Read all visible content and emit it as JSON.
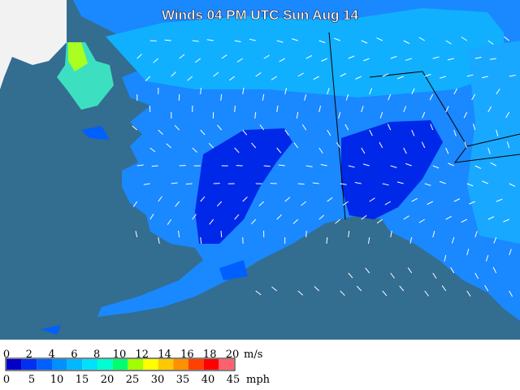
{
  "title": "Winds 04 PM UTC Sun Aug 14",
  "legend": {
    "colors": [
      "#0000c8",
      "#0030f0",
      "#0060ff",
      "#0090ff",
      "#00b8ff",
      "#00e0ff",
      "#00ffd0",
      "#00ff70",
      "#a0ff00",
      "#ffff00",
      "#ffc800",
      "#ff9000",
      "#ff4000",
      "#ff0000",
      "#ff6070"
    ],
    "ms_labels": [
      "0",
      "2",
      "4",
      "6",
      "8",
      "10",
      "12",
      "14",
      "16",
      "18",
      "20"
    ],
    "ms_unit": "m/s",
    "mph_labels": [
      "0",
      "5",
      "10",
      "15",
      "20",
      "25",
      "30",
      "35",
      "40",
      "45"
    ],
    "mph_unit": "mph"
  }
}
